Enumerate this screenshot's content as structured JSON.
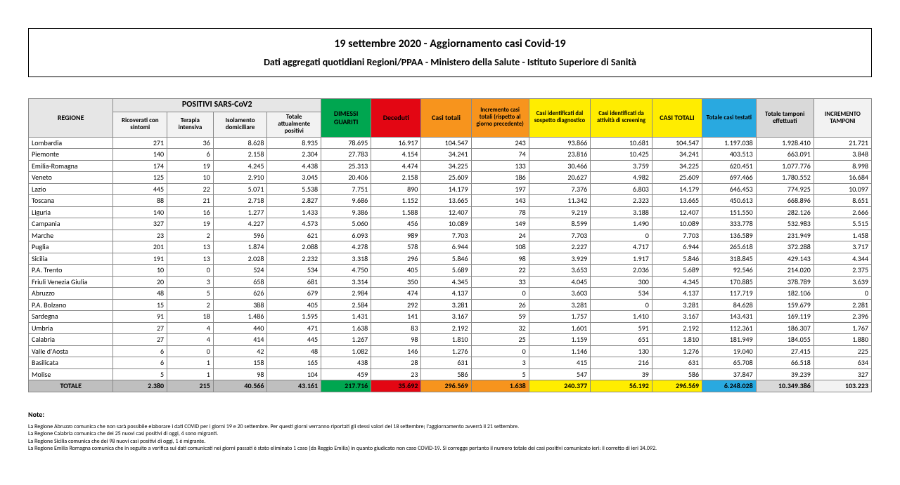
{
  "header": {
    "title": "19 settembre 2020 - Aggiornamento casi Covid-19",
    "subtitle": "Dati aggregati quotidiani Regioni/PPAA - Ministero della Salute - Istituto Superiore di Sanità"
  },
  "columns": {
    "regione": "REGIONE",
    "positivi_group": "POSITIVI SARS-CoV2",
    "ricoverati": "Ricoverati con sintomi",
    "terapia": "Terapia intensiva",
    "isolamento": "Isolamento domiciliare",
    "totale_positivi": "Totale attualmente positivi",
    "dimessi": "DIMESSI GUARITI",
    "deceduti": "Deceduti",
    "casi_totali_o": "Casi totali",
    "incremento_o": "Incremento casi totali (rispetto al giorno precedente)",
    "sospetto": "Casi identificati dal sospetto diagnostico",
    "screening": "Casi identificati da attività di screening",
    "casi_totali_y": "CASI TOTALI",
    "testati": "Totale casi testati",
    "tamponi": "Totale tamponi effettuati",
    "incr_tamponi": "INCREMENTO TAMPONI"
  },
  "colors": {
    "green": "#00a650",
    "red": "#e30613",
    "orange": "#f7941d",
    "yellow": "#ffed00",
    "blue": "#29a9e0",
    "grey_header": "#e6e6e6",
    "grey_sub": "#f2f2f2",
    "grey_total": "#bfbfbf",
    "grey_light": "#d9d9d9"
  },
  "rows": [
    {
      "r": "Lombardia",
      "v": [
        "271",
        "36",
        "8.628",
        "8.935",
        "78.695",
        "16.917",
        "104.547",
        "243",
        "93.866",
        "10.681",
        "104.547",
        "1.197.038",
        "1.928.410",
        "21.721"
      ]
    },
    {
      "r": "Piemonte",
      "v": [
        "140",
        "6",
        "2.158",
        "2.304",
        "27.783",
        "4.154",
        "34.241",
        "74",
        "23.816",
        "10.425",
        "34.241",
        "403.513",
        "663.091",
        "3.848"
      ]
    },
    {
      "r": "Emilia-Romagna",
      "v": [
        "174",
        "19",
        "4.245",
        "4.438",
        "25.313",
        "4.474",
        "34.225",
        "133",
        "30.466",
        "3.759",
        "34.225",
        "620.451",
        "1.077.776",
        "8.998"
      ]
    },
    {
      "r": "Veneto",
      "v": [
        "125",
        "10",
        "2.910",
        "3.045",
        "20.406",
        "2.158",
        "25.609",
        "186",
        "20.627",
        "4.982",
        "25.609",
        "697.466",
        "1.780.552",
        "16.684"
      ]
    },
    {
      "r": "Lazio",
      "v": [
        "445",
        "22",
        "5.071",
        "5.538",
        "7.751",
        "890",
        "14.179",
        "197",
        "7.376",
        "6.803",
        "14.179",
        "646.453",
        "774.925",
        "10.097"
      ]
    },
    {
      "r": "Toscana",
      "v": [
        "88",
        "21",
        "2.718",
        "2.827",
        "9.686",
        "1.152",
        "13.665",
        "143",
        "11.342",
        "2.323",
        "13.665",
        "450.613",
        "668.896",
        "8.651"
      ]
    },
    {
      "r": "Liguria",
      "v": [
        "140",
        "16",
        "1.277",
        "1.433",
        "9.386",
        "1.588",
        "12.407",
        "78",
        "9.219",
        "3.188",
        "12.407",
        "151.550",
        "282.126",
        "2.666"
      ]
    },
    {
      "r": "Campania",
      "v": [
        "327",
        "19",
        "4.227",
        "4.573",
        "5.060",
        "456",
        "10.089",
        "149",
        "8.599",
        "1.490",
        "10.089",
        "333.778",
        "532.983",
        "5.515"
      ]
    },
    {
      "r": "Marche",
      "v": [
        "23",
        "2",
        "596",
        "621",
        "6.093",
        "989",
        "7.703",
        "24",
        "7.703",
        "0",
        "7.703",
        "136.589",
        "231.949",
        "1.458"
      ]
    },
    {
      "r": "Puglia",
      "v": [
        "201",
        "13",
        "1.874",
        "2.088",
        "4.278",
        "578",
        "6.944",
        "108",
        "2.227",
        "4.717",
        "6.944",
        "265.618",
        "372.288",
        "3.717"
      ]
    },
    {
      "r": "Sicilia",
      "v": [
        "191",
        "13",
        "2.028",
        "2.232",
        "3.318",
        "296",
        "5.846",
        "98",
        "3.929",
        "1.917",
        "5.846",
        "318.845",
        "429.143",
        "4.344"
      ]
    },
    {
      "r": "P.A. Trento",
      "v": [
        "10",
        "0",
        "524",
        "534",
        "4.750",
        "405",
        "5.689",
        "22",
        "3.653",
        "2.036",
        "5.689",
        "92.546",
        "214.020",
        "2.375"
      ]
    },
    {
      "r": "Friuli Venezia Giulia",
      "v": [
        "20",
        "3",
        "658",
        "681",
        "3.314",
        "350",
        "4.345",
        "33",
        "4.045",
        "300",
        "4.345",
        "170.885",
        "378.789",
        "3.639"
      ]
    },
    {
      "r": "Abruzzo",
      "v": [
        "48",
        "5",
        "626",
        "679",
        "2.984",
        "474",
        "4.137",
        "0",
        "3.603",
        "534",
        "4.137",
        "117.719",
        "182.106",
        "0"
      ]
    },
    {
      "r": "P.A. Bolzano",
      "v": [
        "15",
        "2",
        "388",
        "405",
        "2.584",
        "292",
        "3.281",
        "26",
        "3.281",
        "0",
        "3.281",
        "84.628",
        "159.679",
        "2.281"
      ]
    },
    {
      "r": "Sardegna",
      "v": [
        "91",
        "18",
        "1.486",
        "1.595",
        "1.431",
        "141",
        "3.167",
        "59",
        "1.757",
        "1.410",
        "3.167",
        "143.431",
        "169.119",
        "2.396"
      ]
    },
    {
      "r": "Umbria",
      "v": [
        "27",
        "4",
        "440",
        "471",
        "1.638",
        "83",
        "2.192",
        "32",
        "1.601",
        "591",
        "2.192",
        "112.361",
        "186.307",
        "1.767"
      ]
    },
    {
      "r": "Calabria",
      "v": [
        "27",
        "4",
        "414",
        "445",
        "1.267",
        "98",
        "1.810",
        "25",
        "1.159",
        "651",
        "1.810",
        "181.949",
        "184.055",
        "1.880"
      ]
    },
    {
      "r": "Valle d'Aosta",
      "v": [
        "6",
        "0",
        "42",
        "48",
        "1.082",
        "146",
        "1.276",
        "0",
        "1.146",
        "130",
        "1.276",
        "19.040",
        "27.415",
        "225"
      ]
    },
    {
      "r": "Basilicata",
      "v": [
        "6",
        "1",
        "158",
        "165",
        "438",
        "28",
        "631",
        "3",
        "415",
        "216",
        "631",
        "65.708",
        "66.518",
        "634"
      ]
    },
    {
      "r": "Molise",
      "v": [
        "5",
        "1",
        "98",
        "104",
        "459",
        "23",
        "586",
        "5",
        "547",
        "39",
        "586",
        "37.847",
        "39.239",
        "327"
      ]
    }
  ],
  "total": {
    "r": "TOTALE",
    "v": [
      "2.380",
      "215",
      "40.566",
      "43.161",
      "217.716",
      "35.692",
      "296.569",
      "1.638",
      "240.377",
      "56.192",
      "296.569",
      "6.248.028",
      "10.349.386",
      "103.223"
    ]
  },
  "total_bg": [
    "#bfbfbf",
    "#bfbfbf",
    "#bfbfbf",
    "#bfbfbf",
    "#00a650",
    "#e30613",
    "#f7941d",
    "#f7941d",
    "#ffed00",
    "#ffed00",
    "#ffed00",
    "#29a9e0",
    "#d9d9d9",
    "#f2f2f2"
  ],
  "notes": {
    "label": "Note:",
    "lines": [
      "La Regione Abruzzo comunica che non sarà possibile elaborare i dati COVID per i giorni 19 e 20 settembre. Per questi giorni verranno riportati gli stessi valori del 18 settembre; l'aggiornamento avverrà il 21 settembre.",
      "La Regione Calabria comunica che dei 25 nuovi casi positivi di oggi, 4 sono migranti.",
      "La Regione Sicilia comunica che dei 98 nuovi casi positivi di oggi, 1 è migrante.",
      "La Regione Emilia Romagna comunica che in seguito a verifica sui dati comunicati nei giorni passati è stato eliminato 1 caso (da Reggio Emilia) in quanto giudicato non caso COVID-19. Si corregge pertanto il numero totale dei casi positivi comunicato ieri: il corretto di ieri 34.092."
    ]
  }
}
